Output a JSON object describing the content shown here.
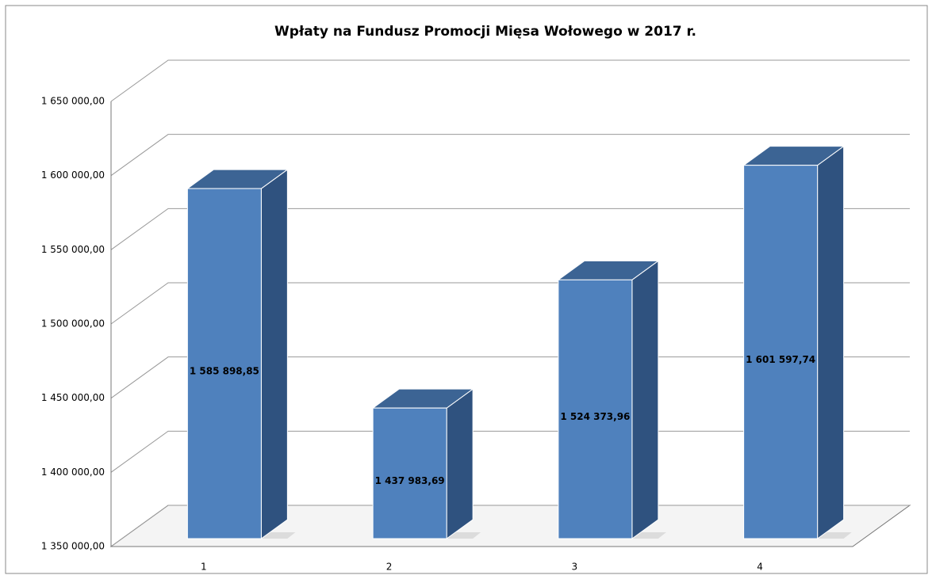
{
  "chart_data": {
    "type": "bar3d",
    "title": "Wpłaty na Fundusz Promocji Mięsa Wołowego w 2017 r.",
    "categories": [
      "1",
      "2",
      "3",
      "4"
    ],
    "values": [
      1585898.85,
      1437983.69,
      1524373.96,
      1601597.74
    ],
    "value_labels": [
      "1 585 898,85",
      "1 437 983,69",
      "1 524 373,96",
      "1 601 597,74"
    ],
    "color": "#4f81bd",
    "ylim": [
      1350000,
      1650000
    ],
    "yticks": [
      {
        "value": 1350000,
        "label": "1 350 000,00"
      },
      {
        "value": 1400000,
        "label": "1 400 000,00"
      },
      {
        "value": 1450000,
        "label": "1 450 000,00"
      },
      {
        "value": 1500000,
        "label": "1 500 000,00"
      },
      {
        "value": 1550000,
        "label": "1 550 000,00"
      },
      {
        "value": 1600000,
        "label": "1 600 000,00"
      },
      {
        "value": 1650000,
        "label": "1 650 000,00"
      }
    ],
    "grid": true
  }
}
